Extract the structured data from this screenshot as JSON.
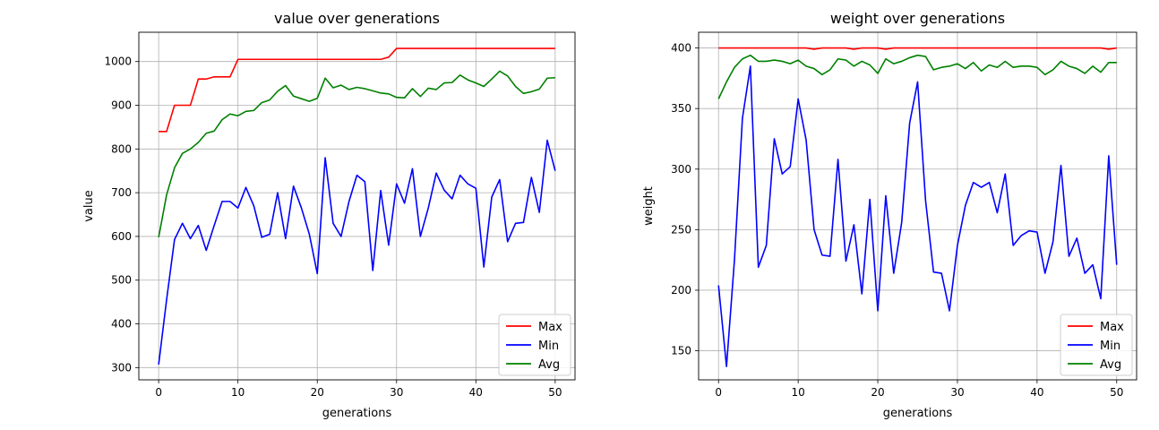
{
  "chart_data": [
    {
      "type": "line",
      "title": "value over generations",
      "xlabel": "generations",
      "ylabel": "value",
      "xlim": [
        -2.5,
        52.5
      ],
      "ylim": [
        272,
        1067
      ],
      "xticks": [
        0,
        10,
        20,
        30,
        40,
        50
      ],
      "yticks": [
        300,
        400,
        500,
        600,
        700,
        800,
        900,
        1000
      ],
      "grid": true,
      "legend_position": "lower-right",
      "x": [
        0,
        1,
        2,
        3,
        4,
        5,
        6,
        7,
        8,
        9,
        10,
        11,
        12,
        13,
        14,
        15,
        16,
        17,
        18,
        19,
        20,
        21,
        22,
        23,
        24,
        25,
        26,
        27,
        28,
        29,
        30,
        31,
        32,
        33,
        34,
        35,
        36,
        37,
        38,
        39,
        40,
        41,
        42,
        43,
        44,
        45,
        46,
        47,
        48,
        49,
        50
      ],
      "series": [
        {
          "name": "Max",
          "color": "#ff0000",
          "values": [
            840,
            840,
            900,
            900,
            900,
            960,
            960,
            965,
            965,
            965,
            1005,
            1005,
            1005,
            1005,
            1005,
            1005,
            1005,
            1005,
            1005,
            1005,
            1005,
            1005,
            1005,
            1005,
            1005,
            1005,
            1005,
            1005,
            1005,
            1010,
            1030,
            1030,
            1030,
            1030,
            1030,
            1030,
            1030,
            1030,
            1030,
            1030,
            1030,
            1030,
            1030,
            1030,
            1030,
            1030,
            1030,
            1030,
            1030,
            1030,
            1030
          ]
        },
        {
          "name": "Min",
          "color": "#0000ff",
          "values": [
            307,
            455,
            593,
            630,
            595,
            625,
            568,
            625,
            680,
            680,
            665,
            712,
            670,
            598,
            605,
            700,
            595,
            715,
            665,
            605,
            515,
            780,
            630,
            600,
            680,
            740,
            725,
            522,
            705,
            580,
            720,
            676,
            755,
            600,
            665,
            745,
            706,
            686,
            740,
            720,
            710,
            530,
            690,
            730,
            588,
            630,
            632,
            735,
            655,
            820,
            750
          ]
        },
        {
          "name": "Avg",
          "color": "#008000",
          "values": [
            598,
            695,
            757,
            790,
            800,
            815,
            836,
            841,
            867,
            880,
            876,
            886,
            888,
            906,
            912,
            932,
            945,
            921,
            915,
            909,
            916,
            962,
            940,
            946,
            936,
            941,
            938,
            933,
            928,
            926,
            918,
            917,
            938,
            920,
            939,
            936,
            951,
            952,
            969,
            958,
            951,
            943,
            960,
            978,
            967,
            943,
            927,
            931,
            937,
            962,
            963
          ]
        }
      ]
    },
    {
      "type": "line",
      "title": "weight over generations",
      "xlabel": "generations",
      "ylabel": "weight",
      "xlim": [
        -2.5,
        52.5
      ],
      "ylim": [
        126,
        413
      ],
      "xticks": [
        0,
        10,
        20,
        30,
        40,
        50
      ],
      "yticks": [
        150,
        200,
        250,
        300,
        350,
        400
      ],
      "grid": true,
      "legend_position": "lower-right",
      "x": [
        0,
        1,
        2,
        3,
        4,
        5,
        6,
        7,
        8,
        9,
        10,
        11,
        12,
        13,
        14,
        15,
        16,
        17,
        18,
        19,
        20,
        21,
        22,
        23,
        24,
        25,
        26,
        27,
        28,
        29,
        30,
        31,
        32,
        33,
        34,
        35,
        36,
        37,
        38,
        39,
        40,
        41,
        42,
        43,
        44,
        45,
        46,
        47,
        48,
        49,
        50
      ],
      "series": [
        {
          "name": "Max",
          "color": "#ff0000",
          "values": [
            400,
            400,
            400,
            400,
            400,
            400,
            400,
            400,
            400,
            400,
            400,
            400,
            399,
            400,
            400,
            400,
            400,
            399,
            400,
            400,
            400,
            399,
            400,
            400,
            400,
            400,
            400,
            400,
            400,
            400,
            400,
            400,
            400,
            400,
            400,
            400,
            400,
            400,
            400,
            400,
            400,
            400,
            400,
            400,
            400,
            400,
            400,
            400,
            400,
            399,
            400
          ]
        },
        {
          "name": "Min",
          "color": "#0000ff",
          "values": [
            204,
            137,
            225,
            342,
            385,
            219,
            237,
            325,
            296,
            302,
            358,
            324,
            250,
            229,
            228,
            308,
            224,
            254,
            197,
            275,
            183,
            278,
            214,
            256,
            338,
            372,
            274,
            215,
            214,
            183,
            237,
            270,
            289,
            285,
            289,
            264,
            296,
            237,
            245,
            249,
            248,
            214,
            240,
            303,
            228,
            243,
            214,
            221,
            193,
            311,
            221
          ]
        },
        {
          "name": "Avg",
          "color": "#008000",
          "values": [
            358,
            372,
            384,
            391,
            394,
            389,
            389,
            390,
            389,
            387,
            390,
            385,
            383,
            378,
            382,
            391,
            390,
            385,
            389,
            386,
            379,
            391,
            387,
            389,
            392,
            394,
            393,
            382,
            384,
            385,
            387,
            383,
            388,
            381,
            386,
            384,
            389,
            384,
            385,
            385,
            384,
            378,
            382,
            389,
            385,
            383,
            379,
            385,
            380,
            388,
            388
          ]
        }
      ]
    }
  ]
}
